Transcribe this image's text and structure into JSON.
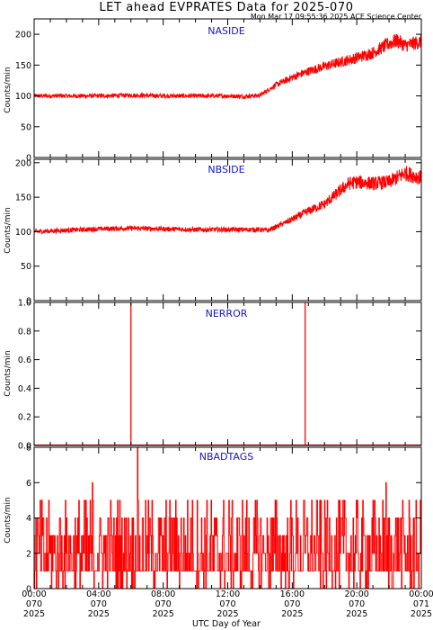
{
  "header": {
    "title": "LET ahead EVPRATES Data for 2025-070",
    "timestamp": "Mon Mar 17 09:55:36 2025 ACE Science Center"
  },
  "colors": {
    "series": "#ff0000",
    "panel_label": "#1515c8",
    "axes": "#000000"
  },
  "chart_data": [
    {
      "type": "line",
      "panel_label": "NASIDE",
      "ylabel": "Counts/min",
      "ylim": [
        0,
        225
      ],
      "yticks": [
        "0",
        "50",
        "100",
        "150",
        "200"
      ],
      "x": [
        0,
        2,
        4,
        6,
        8,
        10,
        12,
        13,
        14,
        15,
        16,
        17,
        18,
        19,
        20,
        21,
        22,
        22.5,
        23,
        24
      ],
      "values": [
        100,
        100,
        100,
        101,
        100,
        100,
        100,
        99,
        101,
        118,
        130,
        140,
        148,
        155,
        162,
        170,
        185,
        190,
        182,
        188
      ],
      "grid": false,
      "legend": "none"
    },
    {
      "type": "line",
      "panel_label": "NBSIDE",
      "ylabel": "Counts/min",
      "ylim": [
        0,
        205
      ],
      "yticks": [
        "0",
        "50",
        "100",
        "150",
        "200"
      ],
      "x": [
        0,
        2,
        4,
        6,
        8,
        10,
        12,
        14,
        14.5,
        15,
        16,
        17,
        18,
        19,
        19.5,
        20,
        21,
        22,
        23,
        24
      ],
      "values": [
        100,
        102,
        104,
        105,
        104,
        103,
        103,
        103,
        102,
        107,
        118,
        130,
        140,
        160,
        170,
        172,
        170,
        172,
        185,
        178
      ],
      "grid": false,
      "legend": "none"
    },
    {
      "type": "line",
      "panel_label": "NERROR",
      "ylabel": "Counts/min",
      "ylim": [
        0,
        1.0
      ],
      "yticks": [
        "0.0",
        "0.2",
        "0.4",
        "0.6",
        "0.8",
        "1.0"
      ],
      "x": [
        6.0,
        16.8
      ],
      "values": [
        1,
        1
      ],
      "baseline": 0,
      "grid": false,
      "legend": "none"
    },
    {
      "type": "line",
      "panel_label": "NBADTAGS",
      "ylabel": "Counts/min",
      "ylim": [
        0,
        8
      ],
      "yticks": [
        "0",
        "2",
        "4",
        "6",
        "8"
      ],
      "x": [
        0,
        24
      ],
      "typical_range": [
        0,
        5
      ],
      "spikes": [
        {
          "x": 6.4,
          "value": 8
        },
        {
          "x": 21.8,
          "value": 6
        },
        {
          "x": 3.6,
          "value": 6
        }
      ],
      "grid": false,
      "legend": "none"
    }
  ],
  "xaxis": {
    "label": "UTC Day of Year",
    "range_hours": [
      0,
      24
    ],
    "ticks": [
      {
        "time": "00:00",
        "doy": "070",
        "year": "2025"
      },
      {
        "time": "04:00",
        "doy": "070",
        "year": "2025"
      },
      {
        "time": "08:00",
        "doy": "070",
        "year": "2025"
      },
      {
        "time": "12:00",
        "doy": "070",
        "year": "2025"
      },
      {
        "time": "16:00",
        "doy": "070",
        "year": "2025"
      },
      {
        "time": "20:00",
        "doy": "070",
        "year": "2025"
      },
      {
        "time": "00:00",
        "doy": "071",
        "year": "2025"
      }
    ]
  }
}
